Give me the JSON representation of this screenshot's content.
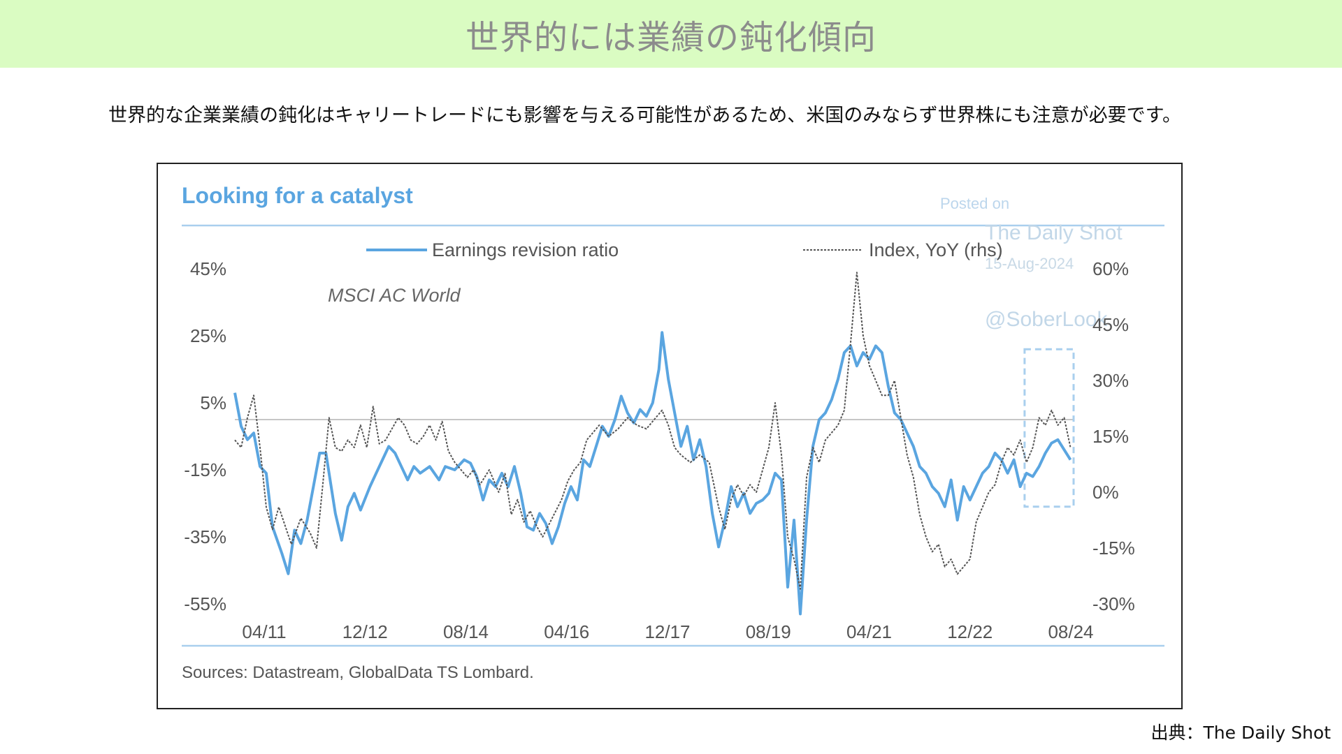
{
  "header": {
    "title": "世界的には業績の鈍化傾向"
  },
  "subtitle": "世界的な企業業績の鈍化はキャリートレードにも影響を与える可能性があるため、米国のみならず世界株にも注意が必要です。",
  "source_note": "出典：The Daily Shot",
  "chart_data": {
    "type": "line",
    "title": "Looking for a catalyst",
    "annotation": "MSCI AC World",
    "watermark": [
      "Posted on",
      "The Daily Shot",
      "15-Aug-2024",
      "@SoberLook"
    ],
    "sources": "Sources: Datastream, GlobalData TS Lombard.",
    "x_ticks": [
      "04/11",
      "12/12",
      "08/14",
      "04/16",
      "12/17",
      "08/19",
      "04/21",
      "12/22",
      "08/24"
    ],
    "y_left_ticks": [
      "45%",
      "25%",
      "5%",
      "-15%",
      "-35%",
      "-55%"
    ],
    "y_right_ticks": [
      "60%",
      "45%",
      "30%",
      "15%",
      "0%",
      "-15%",
      "-30%"
    ],
    "y_left_range": [
      -55,
      45
    ],
    "y_right_range": [
      -30,
      60
    ],
    "x_range": [
      2011.25,
      2024.6
    ],
    "legend_position": "top",
    "colors": {
      "left_series": "#5aa5e0",
      "right_series": "#555555",
      "accent": "#a9cfee",
      "title": "#5aa5e0"
    },
    "series": [
      {
        "name": "Earnings revision ratio",
        "axis": "left",
        "style": "solid",
        "points": [
          [
            2011.25,
            8
          ],
          [
            2011.35,
            -2
          ],
          [
            2011.45,
            -6
          ],
          [
            2011.55,
            -4
          ],
          [
            2011.65,
            -14
          ],
          [
            2011.75,
            -16
          ],
          [
            2011.85,
            -32
          ],
          [
            2012.0,
            -40
          ],
          [
            2012.1,
            -46
          ],
          [
            2012.2,
            -33
          ],
          [
            2012.3,
            -37
          ],
          [
            2012.4,
            -30
          ],
          [
            2012.5,
            -20
          ],
          [
            2012.6,
            -10
          ],
          [
            2012.7,
            -10
          ],
          [
            2012.85,
            -28
          ],
          [
            2012.95,
            -36
          ],
          [
            2013.05,
            -26
          ],
          [
            2013.15,
            -22
          ],
          [
            2013.25,
            -27
          ],
          [
            2013.4,
            -20
          ],
          [
            2013.5,
            -16
          ],
          [
            2013.6,
            -12
          ],
          [
            2013.7,
            -8
          ],
          [
            2013.8,
            -10
          ],
          [
            2013.9,
            -14
          ],
          [
            2014.0,
            -18
          ],
          [
            2014.1,
            -14
          ],
          [
            2014.2,
            -16
          ],
          [
            2014.35,
            -14
          ],
          [
            2014.5,
            -18
          ],
          [
            2014.6,
            -14
          ],
          [
            2014.75,
            -15
          ],
          [
            2014.9,
            -12
          ],
          [
            2015.0,
            -13
          ],
          [
            2015.1,
            -17
          ],
          [
            2015.2,
            -24
          ],
          [
            2015.3,
            -18
          ],
          [
            2015.4,
            -20
          ],
          [
            2015.5,
            -16
          ],
          [
            2015.6,
            -20
          ],
          [
            2015.7,
            -14
          ],
          [
            2015.8,
            -22
          ],
          [
            2015.9,
            -32
          ],
          [
            2016.0,
            -33
          ],
          [
            2016.1,
            -28
          ],
          [
            2016.2,
            -31
          ],
          [
            2016.3,
            -37
          ],
          [
            2016.4,
            -32
          ],
          [
            2016.5,
            -25
          ],
          [
            2016.6,
            -20
          ],
          [
            2016.7,
            -24
          ],
          [
            2016.8,
            -12
          ],
          [
            2016.9,
            -14
          ],
          [
            2017.0,
            -8
          ],
          [
            2017.1,
            -2
          ],
          [
            2017.2,
            -5
          ],
          [
            2017.3,
            0
          ],
          [
            2017.4,
            7
          ],
          [
            2017.5,
            2
          ],
          [
            2017.6,
            -1
          ],
          [
            2017.7,
            3
          ],
          [
            2017.8,
            1
          ],
          [
            2017.9,
            5
          ],
          [
            2018.0,
            15
          ],
          [
            2018.05,
            26
          ],
          [
            2018.15,
            12
          ],
          [
            2018.25,
            2
          ],
          [
            2018.35,
            -8
          ],
          [
            2018.45,
            -2
          ],
          [
            2018.55,
            -12
          ],
          [
            2018.65,
            -6
          ],
          [
            2018.75,
            -14
          ],
          [
            2018.85,
            -28
          ],
          [
            2018.95,
            -38
          ],
          [
            2019.05,
            -30
          ],
          [
            2019.15,
            -20
          ],
          [
            2019.25,
            -26
          ],
          [
            2019.35,
            -22
          ],
          [
            2019.45,
            -28
          ],
          [
            2019.55,
            -25
          ],
          [
            2019.65,
            -24
          ],
          [
            2019.75,
            -22
          ],
          [
            2019.85,
            -16
          ],
          [
            2019.95,
            -18
          ],
          [
            2020.05,
            -50
          ],
          [
            2020.15,
            -30
          ],
          [
            2020.25,
            -58
          ],
          [
            2020.35,
            -30
          ],
          [
            2020.45,
            -8
          ],
          [
            2020.55,
            0
          ],
          [
            2020.65,
            2
          ],
          [
            2020.75,
            6
          ],
          [
            2020.85,
            12
          ],
          [
            2020.95,
            20
          ],
          [
            2021.05,
            22
          ],
          [
            2021.15,
            16
          ],
          [
            2021.25,
            20
          ],
          [
            2021.35,
            18
          ],
          [
            2021.45,
            22
          ],
          [
            2021.55,
            20
          ],
          [
            2021.65,
            10
          ],
          [
            2021.75,
            2
          ],
          [
            2021.85,
            0
          ],
          [
            2021.95,
            -4
          ],
          [
            2022.05,
            -8
          ],
          [
            2022.15,
            -14
          ],
          [
            2022.25,
            -16
          ],
          [
            2022.35,
            -20
          ],
          [
            2022.45,
            -22
          ],
          [
            2022.55,
            -26
          ],
          [
            2022.65,
            -18
          ],
          [
            2022.75,
            -30
          ],
          [
            2022.85,
            -20
          ],
          [
            2022.95,
            -24
          ],
          [
            2023.05,
            -20
          ],
          [
            2023.15,
            -16
          ],
          [
            2023.25,
            -14
          ],
          [
            2023.35,
            -10
          ],
          [
            2023.45,
            -12
          ],
          [
            2023.55,
            -16
          ],
          [
            2023.65,
            -12
          ],
          [
            2023.75,
            -20
          ],
          [
            2023.85,
            -16
          ],
          [
            2023.95,
            -17
          ],
          [
            2024.05,
            -14
          ],
          [
            2024.15,
            -10
          ],
          [
            2024.25,
            -7
          ],
          [
            2024.35,
            -6
          ],
          [
            2024.45,
            -9
          ],
          [
            2024.55,
            -12
          ]
        ]
      },
      {
        "name": "Index, YoY (rhs)",
        "axis": "right",
        "style": "dashed",
        "points": [
          [
            2011.25,
            14
          ],
          [
            2011.35,
            12
          ],
          [
            2011.45,
            20
          ],
          [
            2011.55,
            26
          ],
          [
            2011.65,
            12
          ],
          [
            2011.75,
            -4
          ],
          [
            2011.85,
            -10
          ],
          [
            2011.95,
            -4
          ],
          [
            2012.05,
            -9
          ],
          [
            2012.15,
            -14
          ],
          [
            2012.3,
            -7
          ],
          [
            2012.45,
            -11
          ],
          [
            2012.55,
            -15
          ],
          [
            2012.65,
            2
          ],
          [
            2012.75,
            20
          ],
          [
            2012.85,
            12
          ],
          [
            2012.95,
            11
          ],
          [
            2013.05,
            14
          ],
          [
            2013.15,
            12
          ],
          [
            2013.25,
            18
          ],
          [
            2013.35,
            12
          ],
          [
            2013.45,
            23
          ],
          [
            2013.55,
            13
          ],
          [
            2013.65,
            14
          ],
          [
            2013.75,
            17
          ],
          [
            2013.85,
            20
          ],
          [
            2013.95,
            18
          ],
          [
            2014.05,
            14
          ],
          [
            2014.15,
            13
          ],
          [
            2014.25,
            15
          ],
          [
            2014.35,
            18
          ],
          [
            2014.45,
            14
          ],
          [
            2014.55,
            19
          ],
          [
            2014.65,
            11
          ],
          [
            2014.75,
            8
          ],
          [
            2014.85,
            6
          ],
          [
            2014.95,
            4
          ],
          [
            2015.05,
            6
          ],
          [
            2015.15,
            2
          ],
          [
            2015.3,
            6
          ],
          [
            2015.45,
            0
          ],
          [
            2015.55,
            5
          ],
          [
            2015.65,
            -6
          ],
          [
            2015.75,
            -2
          ],
          [
            2015.85,
            -8
          ],
          [
            2015.95,
            -5
          ],
          [
            2016.05,
            -9
          ],
          [
            2016.15,
            -12
          ],
          [
            2016.3,
            -7
          ],
          [
            2016.45,
            -2
          ],
          [
            2016.55,
            3
          ],
          [
            2016.65,
            6
          ],
          [
            2016.75,
            8
          ],
          [
            2016.85,
            14
          ],
          [
            2016.95,
            16
          ],
          [
            2017.05,
            18
          ],
          [
            2017.2,
            15
          ],
          [
            2017.35,
            17
          ],
          [
            2017.5,
            20
          ],
          [
            2017.65,
            18
          ],
          [
            2017.8,
            17
          ],
          [
            2017.95,
            20
          ],
          [
            2018.05,
            22
          ],
          [
            2018.15,
            18
          ],
          [
            2018.25,
            12
          ],
          [
            2018.35,
            10
          ],
          [
            2018.5,
            8
          ],
          [
            2018.65,
            10
          ],
          [
            2018.8,
            8
          ],
          [
            2018.95,
            -4
          ],
          [
            2019.05,
            -10
          ],
          [
            2019.15,
            -2
          ],
          [
            2019.25,
            2
          ],
          [
            2019.35,
            -1
          ],
          [
            2019.45,
            2
          ],
          [
            2019.55,
            0
          ],
          [
            2019.65,
            6
          ],
          [
            2019.75,
            12
          ],
          [
            2019.85,
            24
          ],
          [
            2019.95,
            10
          ],
          [
            2020.05,
            -12
          ],
          [
            2020.15,
            -18
          ],
          [
            2020.25,
            -26
          ],
          [
            2020.35,
            4
          ],
          [
            2020.45,
            12
          ],
          [
            2020.55,
            8
          ],
          [
            2020.65,
            14
          ],
          [
            2020.75,
            16
          ],
          [
            2020.85,
            18
          ],
          [
            2020.95,
            22
          ],
          [
            2021.05,
            40
          ],
          [
            2021.15,
            59
          ],
          [
            2021.25,
            42
          ],
          [
            2021.35,
            34
          ],
          [
            2021.45,
            30
          ],
          [
            2021.55,
            26
          ],
          [
            2021.65,
            26
          ],
          [
            2021.75,
            30
          ],
          [
            2021.85,
            20
          ],
          [
            2021.95,
            10
          ],
          [
            2022.05,
            4
          ],
          [
            2022.15,
            -6
          ],
          [
            2022.25,
            -12
          ],
          [
            2022.35,
            -16
          ],
          [
            2022.45,
            -14
          ],
          [
            2022.55,
            -20
          ],
          [
            2022.65,
            -18
          ],
          [
            2022.75,
            -22
          ],
          [
            2022.85,
            -20
          ],
          [
            2022.95,
            -18
          ],
          [
            2023.05,
            -8
          ],
          [
            2023.15,
            -4
          ],
          [
            2023.25,
            0
          ],
          [
            2023.35,
            2
          ],
          [
            2023.45,
            8
          ],
          [
            2023.55,
            12
          ],
          [
            2023.65,
            10
          ],
          [
            2023.75,
            14
          ],
          [
            2023.85,
            8
          ],
          [
            2023.95,
            12
          ],
          [
            2024.05,
            20
          ],
          [
            2024.15,
            18
          ],
          [
            2024.25,
            22
          ],
          [
            2024.35,
            18
          ],
          [
            2024.45,
            20
          ],
          [
            2024.55,
            12
          ]
        ]
      }
    ]
  }
}
